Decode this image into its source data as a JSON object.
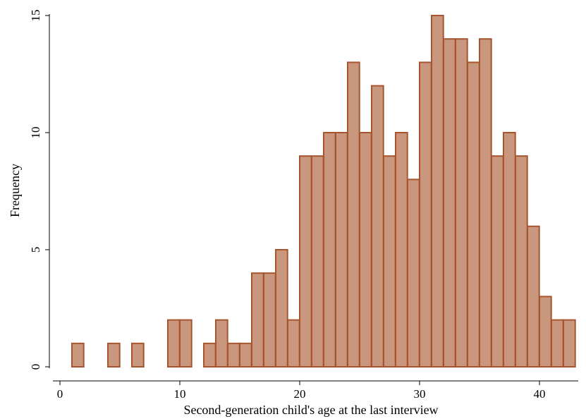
{
  "chart_data": {
    "type": "bar",
    "subtype": "histogram",
    "title": "",
    "xlabel": "Second-generation child's age at the last interview",
    "ylabel": "Frequency",
    "xlim": [
      0,
      43
    ],
    "ylim": [
      0,
      15
    ],
    "xticks": [
      0,
      10,
      20,
      30,
      40
    ],
    "yticks": [
      0,
      5,
      10,
      15
    ],
    "bin_width": 0.98,
    "grid": false,
    "legend": "none",
    "colors": {
      "bar_fill": "#c8977d",
      "bar_edge": "#a6552e"
    },
    "bins": [
      {
        "start": 1.0,
        "count": 1
      },
      {
        "start": 4.0,
        "count": 1
      },
      {
        "start": 6.0,
        "count": 1
      },
      {
        "start": 9.0,
        "count": 2
      },
      {
        "start": 10.0,
        "count": 2
      },
      {
        "start": 12.0,
        "count": 1
      },
      {
        "start": 13.0,
        "count": 2
      },
      {
        "start": 14.0,
        "count": 1
      },
      {
        "start": 15.0,
        "count": 1
      },
      {
        "start": 16.0,
        "count": 4
      },
      {
        "start": 17.0,
        "count": 4
      },
      {
        "start": 18.0,
        "count": 5
      },
      {
        "start": 19.0,
        "count": 2
      },
      {
        "start": 20.0,
        "count": 9
      },
      {
        "start": 21.0,
        "count": 9
      },
      {
        "start": 22.0,
        "count": 10
      },
      {
        "start": 23.0,
        "count": 10
      },
      {
        "start": 24.0,
        "count": 13
      },
      {
        "start": 25.0,
        "count": 10
      },
      {
        "start": 26.0,
        "count": 12
      },
      {
        "start": 27.0,
        "count": 9
      },
      {
        "start": 28.0,
        "count": 10
      },
      {
        "start": 29.0,
        "count": 8
      },
      {
        "start": 30.0,
        "count": 13
      },
      {
        "start": 31.0,
        "count": 15
      },
      {
        "start": 32.0,
        "count": 14
      },
      {
        "start": 33.0,
        "count": 14
      },
      {
        "start": 34.0,
        "count": 13
      },
      {
        "start": 35.0,
        "count": 14
      },
      {
        "start": 36.0,
        "count": 9
      },
      {
        "start": 37.0,
        "count": 10
      },
      {
        "start": 38.0,
        "count": 9
      },
      {
        "start": 39.0,
        "count": 6
      },
      {
        "start": 40.0,
        "count": 3
      },
      {
        "start": 41.0,
        "count": 2
      },
      {
        "start": 42.0,
        "count": 2
      }
    ]
  }
}
